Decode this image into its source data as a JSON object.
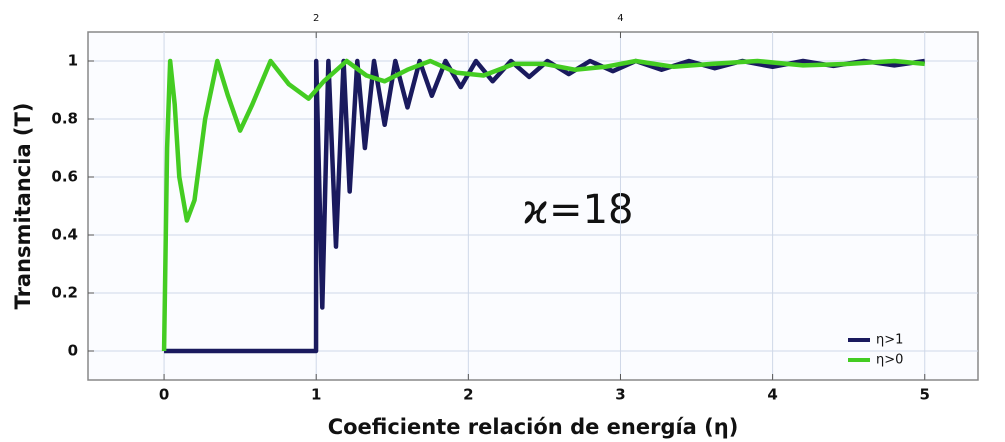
{
  "chart_data": {
    "type": "line",
    "xlabel": "Coeficiente relación de energía  (η)",
    "ylabel": "Transmitancia (T)",
    "annotation": "ϰ=18",
    "xlim": [
      -0.5,
      5.35
    ],
    "xticks": [
      0,
      1,
      2,
      3,
      4,
      5
    ],
    "x2lim": [
      0.5,
      6.35
    ],
    "x2ticks": [
      2,
      4
    ],
    "ylim": [
      -0.1,
      1.1
    ],
    "yticks": [
      0,
      0.2,
      0.4,
      0.6,
      0.8,
      1
    ],
    "grid": true,
    "legend": "lower right",
    "series": [
      {
        "name": "η>1",
        "color": "#1a1a5e",
        "x": [
          0,
          0.999,
          1.0,
          1.04,
          1.08,
          1.13,
          1.18,
          1.22,
          1.27,
          1.32,
          1.38,
          1.45,
          1.52,
          1.6,
          1.68,
          1.76,
          1.85,
          1.95,
          2.05,
          2.16,
          2.28,
          2.4,
          2.52,
          2.66,
          2.8,
          2.95,
          3.1,
          3.27,
          3.45,
          3.62,
          3.8,
          4.0,
          4.2,
          4.4,
          4.6,
          4.8,
          5.0
        ],
        "values": [
          0,
          0,
          1,
          0.15,
          1,
          0.36,
          1,
          0.55,
          1,
          0.7,
          1,
          0.78,
          1,
          0.84,
          1,
          0.88,
          1,
          0.91,
          1,
          0.93,
          1,
          0.945,
          1,
          0.955,
          1,
          0.965,
          1,
          0.97,
          1,
          0.975,
          1,
          0.98,
          1,
          0.983,
          1,
          0.985,
          1
        ]
      },
      {
        "name": "η>0",
        "color": "#44cc22",
        "x": [
          0,
          0.02,
          0.04,
          0.07,
          0.1,
          0.15,
          0.2,
          0.27,
          0.35,
          0.42,
          0.5,
          0.58,
          0.7,
          0.82,
          0.95,
          1.05,
          1.2,
          1.33,
          1.45,
          1.6,
          1.75,
          1.92,
          2.1,
          2.3,
          2.5,
          2.7,
          2.9,
          3.1,
          3.35,
          3.6,
          3.9,
          4.2,
          4.5,
          4.8,
          5.0
        ],
        "values": [
          0,
          0.7,
          1.0,
          0.85,
          0.6,
          0.45,
          0.52,
          0.8,
          1.0,
          0.88,
          0.76,
          0.85,
          1.0,
          0.92,
          0.87,
          0.93,
          1.0,
          0.95,
          0.93,
          0.97,
          1.0,
          0.96,
          0.95,
          0.99,
          0.99,
          0.97,
          0.98,
          1.0,
          0.98,
          0.99,
          1.0,
          0.985,
          0.99,
          1.0,
          0.99
        ]
      }
    ]
  }
}
